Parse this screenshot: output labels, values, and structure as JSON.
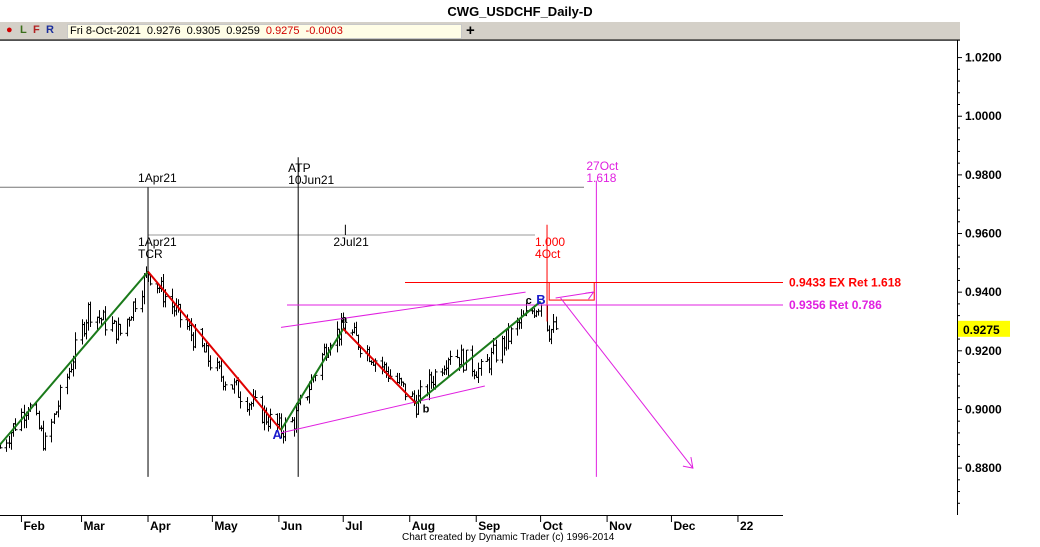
{
  "window": {
    "title": "CWG_USDCHF_Daily-D"
  },
  "toolbar": {
    "items": [
      {
        "label": "L",
        "color": "#3a6e1a"
      },
      {
        "label": "F",
        "color": "#b22222"
      },
      {
        "label": "R",
        "color": "#1c2f9c"
      }
    ],
    "quote": {
      "date": "Fri 8-Oct-2021",
      "open": "0.9276",
      "high": "0.9305",
      "low": "0.9259",
      "close": "0.9275",
      "change": "-0.0003"
    },
    "plus_label": "+"
  },
  "colors": {
    "up_leg": "#1a7a1a",
    "down_leg": "#e00000",
    "magenta": "#e020e0",
    "red_label": "#ff0000",
    "blue_label": "#1a1acc",
    "price_marker": "#ffff00"
  },
  "footer": {
    "credit": "Chart created by Dynamic Trader  (c) 1996-2014"
  },
  "chart_data": {
    "type": "bar",
    "title": "CWG_USDCHF_Daily-D",
    "x_tick_labels": [
      "Feb",
      "Mar",
      "Apr",
      "May",
      "Jun",
      "Jul",
      "Aug",
      "Sep",
      "Oct",
      "Nov",
      "Dec",
      "22"
    ],
    "y_ticks": [
      "1.0200",
      "1.0000",
      "0.9800",
      "0.9600",
      "0.9400",
      "0.9200",
      "0.9000",
      "0.8800"
    ],
    "ylim": [
      0.864,
      1.026
    ],
    "xlim": [
      "2021-01-22",
      "2022-01-22"
    ],
    "last_price": "0.9275",
    "ohlc_swings": [
      [
        "2021-01-22",
        0.887
      ],
      [
        "2021-02-04",
        0.902
      ],
      [
        "2021-02-12",
        0.888
      ],
      [
        "2021-03-04",
        0.934
      ],
      [
        "2021-03-19",
        0.926
      ],
      [
        "2021-04-01",
        0.947
      ],
      [
        "2021-05-03",
        0.913
      ],
      [
        "2021-05-25",
        0.898
      ],
      [
        "2021-06-02",
        0.893
      ],
      [
        "2021-06-08",
        0.896
      ],
      [
        "2021-06-25",
        0.925
      ],
      [
        "2021-07-02",
        0.9275
      ],
      [
        "2021-07-15",
        0.918
      ],
      [
        "2021-08-04",
        0.902
      ],
      [
        "2021-08-20",
        0.92
      ],
      [
        "2021-09-03",
        0.913
      ],
      [
        "2021-09-22",
        0.93
      ],
      [
        "2021-10-01",
        0.9368
      ],
      [
        "2021-10-05",
        0.927
      ],
      [
        "2021-10-08",
        0.9275
      ]
    ],
    "wave_legs": [
      {
        "from": [
          "2021-01-22",
          0.888
        ],
        "to": [
          "2021-04-01",
          0.947
        ],
        "direction": "up"
      },
      {
        "from": [
          "2021-04-01",
          0.947
        ],
        "to": [
          "2021-06-02",
          0.893
        ],
        "direction": "down"
      },
      {
        "from": [
          "2021-06-02",
          0.893
        ],
        "to": [
          "2021-07-01",
          0.9275
        ],
        "direction": "up"
      },
      {
        "from": [
          "2021-07-01",
          0.9275
        ],
        "to": [
          "2021-08-04",
          0.902
        ],
        "direction": "down"
      },
      {
        "from": [
          "2021-08-04",
          0.902
        ],
        "to": [
          "2021-10-01",
          0.9368
        ],
        "direction": "up"
      }
    ],
    "wave_labels": [
      {
        "text": "A",
        "date": "2021-05-29",
        "price": 0.89,
        "color": "blue"
      },
      {
        "text": "a",
        "date": "2021-06-30",
        "price": 0.9295,
        "color": "black"
      },
      {
        "text": "b",
        "date": "2021-08-07",
        "price": 0.899,
        "color": "black"
      },
      {
        "text": "c",
        "date": "2021-09-24",
        "price": 0.936,
        "color": "black"
      },
      {
        "text": "B",
        "date": "2021-09-29",
        "price": 0.936,
        "color": "blue"
      }
    ],
    "price_levels": [
      {
        "label": "0.9433 EX Ret 1.618",
        "price": 0.9433,
        "color": "red"
      },
      {
        "label": "0.9356 Ret 0.786",
        "price": 0.9356,
        "color": "magenta"
      }
    ],
    "time_markers": [
      {
        "date": "2021-04-01",
        "labels": [
          "1Apr21"
        ],
        "anchor_price": 0.9758
      },
      {
        "date": "2021-04-01",
        "labels": [
          "1Apr21",
          "TCR"
        ],
        "anchor_price": 0.959
      },
      {
        "date": "2021-06-10",
        "labels": [
          "ATP",
          "10Jun21"
        ],
        "anchor_price": 0.9758
      },
      {
        "date": "2021-07-02",
        "labels": [
          "2Jul21"
        ],
        "anchor_price": 0.959
      },
      {
        "date": "2021-10-04",
        "labels": [
          "1.000",
          "4Oct"
        ],
        "color": "red"
      },
      {
        "date": "2021-10-27",
        "labels": [
          "27Oct",
          "1.618"
        ],
        "color": "magenta"
      }
    ],
    "channel_lines": [
      {
        "from": [
          "2021-06-02",
          0.928
        ],
        "to": [
          "2021-09-24",
          0.94
        ]
      },
      {
        "from": [
          "2021-06-02",
          0.892
        ],
        "to": [
          "2021-09-05",
          0.908
        ]
      }
    ],
    "target_box": {
      "date_from": "2021-10-05",
      "date_to": "2021-10-26",
      "price_from": 0.9373,
      "price_to": 0.9433
    },
    "projection_arrow": {
      "from": [
        "2021-10-21",
        0.94
      ],
      "via": [
        "2021-10-08",
        0.938
      ],
      "to": [
        "2021-12-11",
        0.88
      ]
    }
  }
}
